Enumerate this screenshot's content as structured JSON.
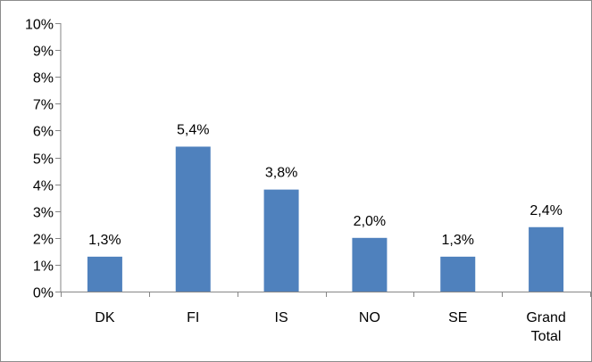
{
  "chart_data": {
    "type": "bar",
    "categories": [
      [
        "DK"
      ],
      [
        "FI"
      ],
      [
        "IS"
      ],
      [
        "NO"
      ],
      [
        "SE"
      ],
      [
        "Grand",
        "Total"
      ]
    ],
    "values": [
      1.3,
      5.4,
      3.8,
      2.0,
      1.3,
      2.4
    ],
    "data_labels": [
      "1,3%",
      "5,4%",
      "3,8%",
      "2,0%",
      "1,3%",
      "2,4%"
    ],
    "y_ticks": [
      0,
      1,
      2,
      3,
      4,
      5,
      6,
      7,
      8,
      9,
      10
    ],
    "y_tick_labels": [
      "0%",
      "1%",
      "2%",
      "3%",
      "4%",
      "5%",
      "6%",
      "7%",
      "8%",
      "9%",
      "10%"
    ],
    "ylim": [
      0,
      10
    ],
    "title": "",
    "xlabel": "",
    "ylabel": "",
    "grid": false,
    "legend": "none",
    "bar_color": "#4F81BD",
    "axis_color": "#868686"
  }
}
